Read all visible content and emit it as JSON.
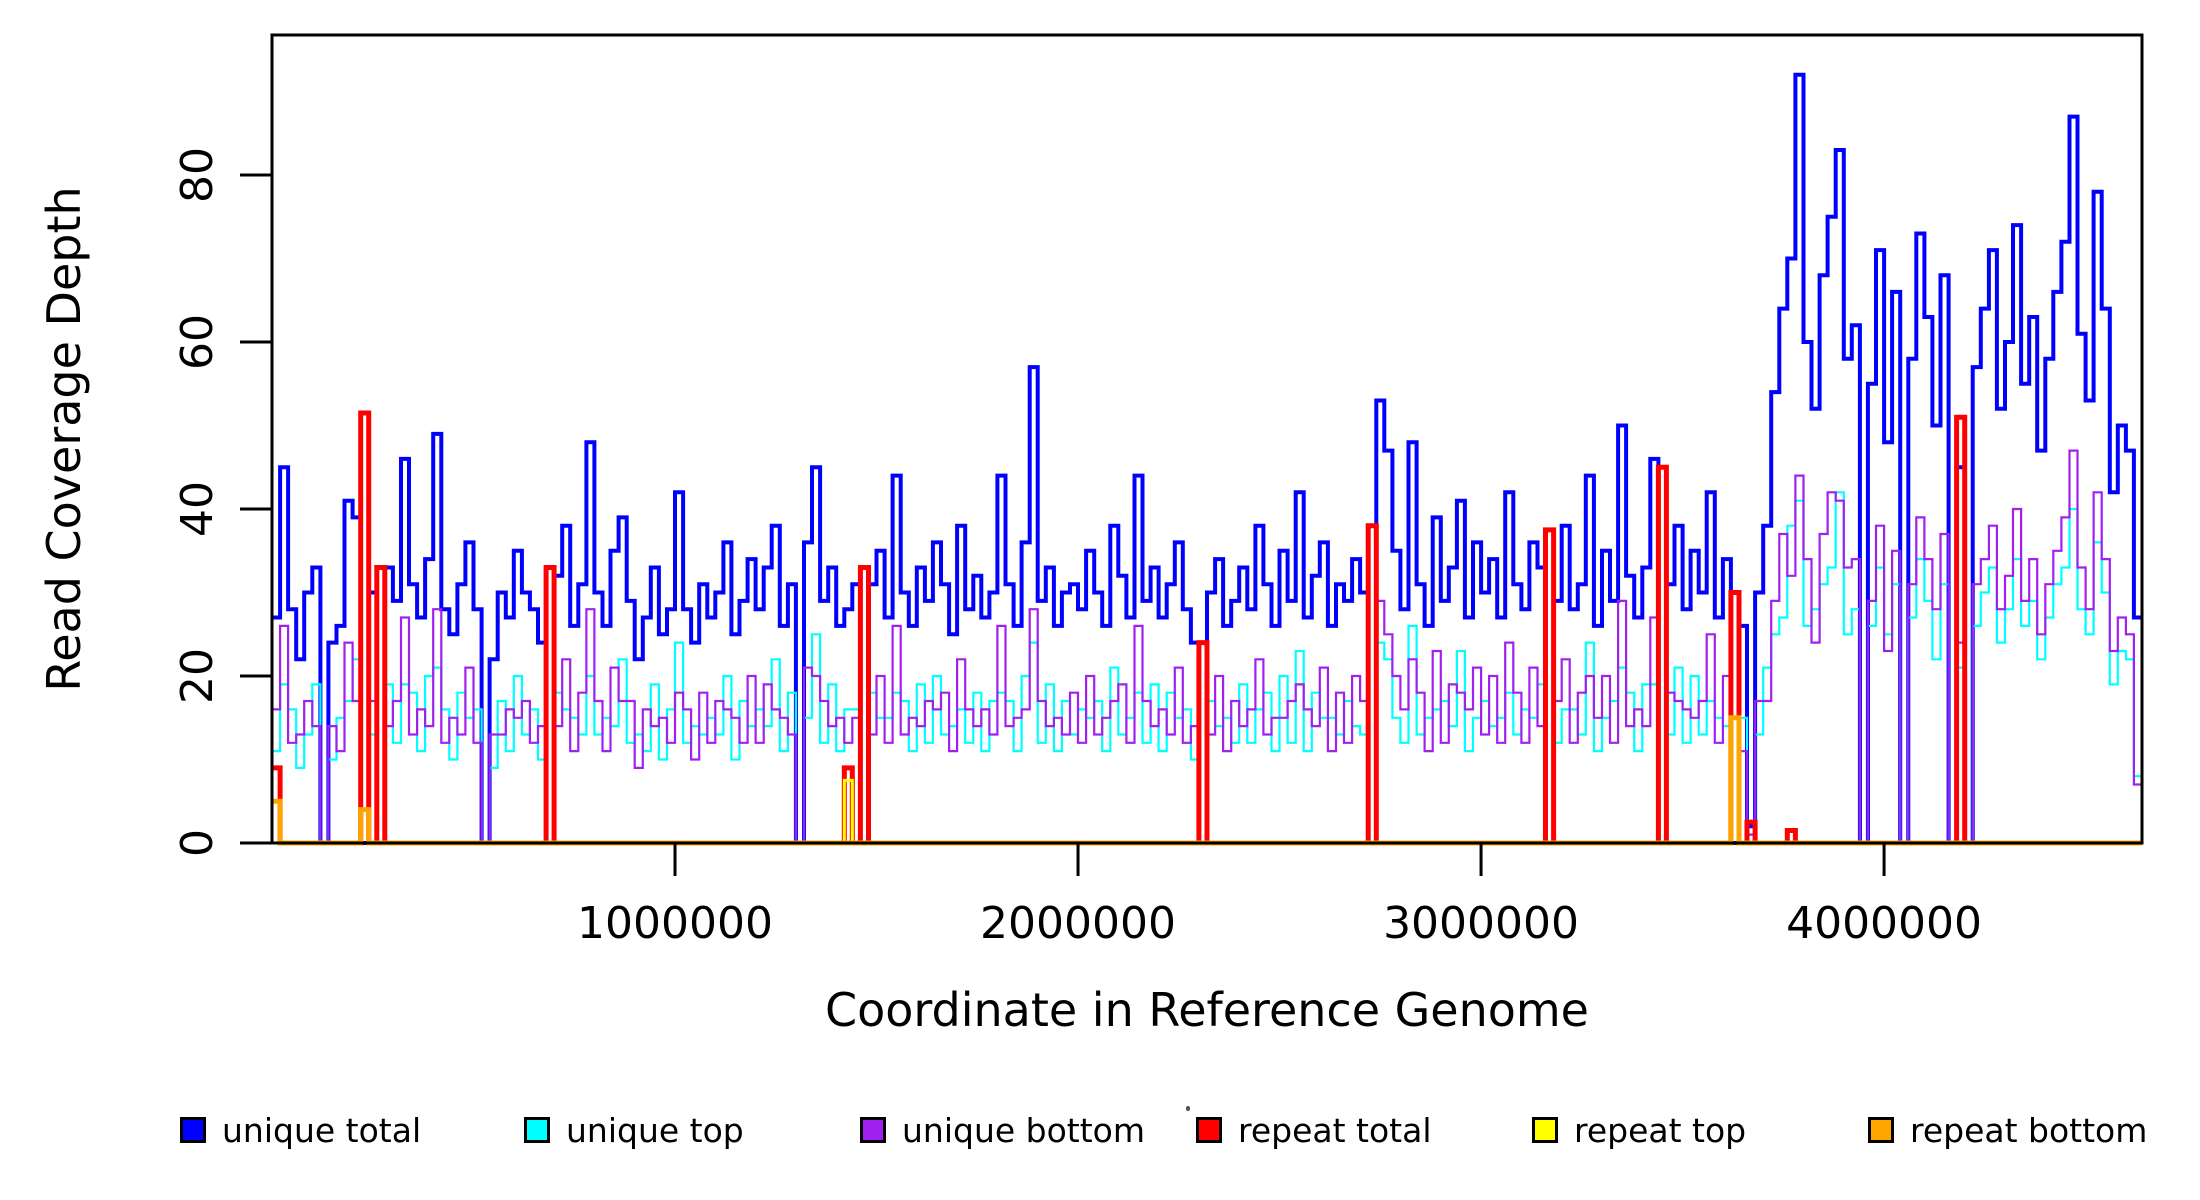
{
  "chart_data": {
    "type": "line",
    "subtype": "step-coverage",
    "title": "",
    "xlabel": "Coordinate in Reference Genome",
    "ylabel": "Read Coverage Depth",
    "x_range_bp": [
      0,
      4640000
    ],
    "ylim": [
      0,
      96
    ],
    "window_bp": 20000,
    "grid": false,
    "legend_position": "bottom-horizontal",
    "x_axis": {
      "ticks": [
        {
          "coord": 1000000,
          "label": "1000000"
        },
        {
          "coord": 2000000,
          "label": "2000000"
        },
        {
          "coord": 3000000,
          "label": "3000000"
        },
        {
          "coord": 4000000,
          "label": "4000000"
        }
      ]
    },
    "y_axis": {
      "ticks": [
        {
          "value": 0,
          "label": "0"
        },
        {
          "value": 20,
          "label": "20"
        },
        {
          "value": 40,
          "label": "40"
        },
        {
          "value": 60,
          "label": "60"
        },
        {
          "value": 80,
          "label": "80"
        }
      ]
    },
    "series": [
      {
        "name": "unique total",
        "color": "#0000ff",
        "line_width": 4,
        "values": [
          27,
          45,
          28,
          22,
          30,
          33,
          0,
          24,
          26,
          41,
          39,
          0,
          30,
          0,
          33,
          29,
          46,
          31,
          27,
          34,
          49,
          28,
          25,
          31,
          36,
          28,
          0,
          22,
          30,
          27,
          35,
          30,
          28,
          24,
          0,
          32,
          38,
          26,
          31,
          48,
          30,
          26,
          35,
          39,
          29,
          22,
          27,
          33,
          25,
          28,
          42,
          28,
          24,
          31,
          27,
          30,
          36,
          25,
          29,
          34,
          28,
          33,
          38,
          26,
          31,
          0,
          36,
          45,
          29,
          33,
          26,
          28,
          31,
          0,
          31,
          35,
          27,
          44,
          30,
          26,
          33,
          29,
          36,
          31,
          25,
          38,
          28,
          32,
          27,
          30,
          44,
          31,
          26,
          36,
          57,
          29,
          33,
          26,
          30,
          31,
          28,
          35,
          30,
          26,
          38,
          32,
          27,
          44,
          29,
          33,
          27,
          31,
          36,
          28,
          24,
          0,
          30,
          34,
          26,
          29,
          33,
          28,
          38,
          31,
          26,
          35,
          29,
          42,
          27,
          32,
          36,
          26,
          31,
          29,
          34,
          30,
          0,
          53,
          47,
          35,
          28,
          48,
          31,
          26,
          39,
          29,
          33,
          41,
          27,
          36,
          30,
          34,
          27,
          42,
          31,
          28,
          36,
          33,
          0,
          29,
          38,
          28,
          31,
          44,
          26,
          35,
          29,
          50,
          32,
          27,
          33,
          46,
          0,
          31,
          38,
          28,
          35,
          30,
          42,
          27,
          34,
          0,
          26,
          2,
          30,
          38,
          54,
          64,
          70,
          92,
          60,
          52,
          68,
          75,
          83,
          58,
          62,
          0,
          55,
          71,
          48,
          66,
          0,
          58,
          73,
          63,
          50,
          68,
          0,
          45,
          0,
          57,
          64,
          71,
          52,
          60,
          74,
          55,
          63,
          47,
          58,
          66,
          72,
          87,
          61,
          53,
          78,
          64,
          42,
          50,
          47,
          27
        ]
      },
      {
        "name": "unique top",
        "color": "#00ffff",
        "line_width": 2.2,
        "values": [
          11,
          19,
          16,
          9,
          13,
          19,
          0,
          10,
          15,
          17,
          22,
          0,
          13,
          0,
          19,
          12,
          19,
          18,
          11,
          20,
          21,
          16,
          10,
          18,
          15,
          16,
          0,
          9,
          17,
          11,
          20,
          13,
          16,
          10,
          0,
          18,
          16,
          15,
          13,
          20,
          13,
          15,
          14,
          22,
          12,
          13,
          11,
          19,
          10,
          16,
          24,
          12,
          14,
          13,
          15,
          13,
          20,
          10,
          17,
          14,
          16,
          14,
          22,
          11,
          18,
          0,
          15,
          25,
          12,
          19,
          11,
          16,
          16,
          0,
          18,
          15,
          15,
          18,
          17,
          11,
          19,
          12,
          20,
          13,
          14,
          16,
          12,
          18,
          11,
          17,
          18,
          17,
          11,
          20,
          24,
          12,
          19,
          11,
          17,
          13,
          16,
          15,
          17,
          11,
          21,
          13,
          15,
          18,
          12,
          19,
          11,
          18,
          15,
          16,
          10,
          0,
          17,
          14,
          15,
          12,
          19,
          12,
          16,
          18,
          11,
          20,
          12,
          23,
          11,
          18,
          15,
          15,
          13,
          17,
          14,
          13,
          0,
          24,
          22,
          15,
          12,
          26,
          13,
          15,
          16,
          17,
          14,
          23,
          11,
          15,
          17,
          14,
          15,
          18,
          13,
          16,
          15,
          19,
          0,
          12,
          16,
          16,
          13,
          24,
          11,
          15,
          17,
          21,
          18,
          11,
          19,
          19,
          0,
          13,
          21,
          12,
          20,
          13,
          17,
          15,
          14,
          0,
          15,
          1,
          13,
          21,
          25,
          27,
          38,
          41,
          26,
          28,
          31,
          33,
          42,
          25,
          28,
          0,
          26,
          33,
          25,
          31,
          0,
          27,
          34,
          29,
          22,
          31,
          0,
          21,
          0,
          26,
          30,
          33,
          24,
          28,
          34,
          26,
          29,
          22,
          27,
          31,
          33,
          40,
          28,
          25,
          36,
          30,
          19,
          23,
          22,
          8
        ]
      },
      {
        "name": "unique bottom",
        "color": "#a020f0",
        "line_width": 2.2,
        "values": [
          16,
          26,
          12,
          13,
          17,
          14,
          0,
          14,
          11,
          24,
          17,
          0,
          17,
          0,
          14,
          17,
          27,
          13,
          16,
          14,
          28,
          12,
          15,
          13,
          21,
          12,
          0,
          13,
          13,
          16,
          15,
          17,
          12,
          14,
          0,
          14,
          22,
          11,
          18,
          28,
          17,
          11,
          21,
          17,
          17,
          9,
          16,
          14,
          15,
          12,
          18,
          16,
          10,
          18,
          12,
          17,
          16,
          15,
          12,
          20,
          12,
          19,
          16,
          15,
          13,
          0,
          21,
          20,
          17,
          14,
          15,
          12,
          15,
          0,
          13,
          20,
          12,
          26,
          13,
          15,
          14,
          17,
          16,
          18,
          11,
          22,
          16,
          14,
          16,
          13,
          26,
          14,
          15,
          16,
          28,
          17,
          14,
          15,
          13,
          18,
          12,
          20,
          13,
          15,
          17,
          19,
          12,
          26,
          17,
          14,
          16,
          13,
          21,
          12,
          14,
          0,
          13,
          20,
          11,
          17,
          14,
          16,
          22,
          13,
          15,
          15,
          17,
          19,
          16,
          14,
          21,
          11,
          18,
          12,
          20,
          17,
          0,
          29,
          25,
          20,
          16,
          22,
          18,
          11,
          23,
          12,
          19,
          18,
          16,
          21,
          13,
          20,
          12,
          24,
          18,
          12,
          21,
          14,
          0,
          17,
          22,
          12,
          18,
          20,
          15,
          20,
          12,
          29,
          14,
          16,
          14,
          27,
          0,
          18,
          17,
          16,
          15,
          17,
          25,
          12,
          20,
          0,
          11,
          1,
          17,
          17,
          29,
          37,
          32,
          44,
          34,
          24,
          37,
          42,
          41,
          33,
          34,
          0,
          29,
          38,
          23,
          35,
          0,
          31,
          39,
          34,
          28,
          37,
          0,
          24,
          0,
          31,
          34,
          38,
          28,
          32,
          40,
          29,
          34,
          25,
          31,
          35,
          39,
          47,
          33,
          28,
          42,
          34,
          23,
          27,
          25,
          7
        ]
      },
      {
        "name": "repeat total",
        "color": "#ff0000",
        "line_width": 5,
        "baseline": 0,
        "spikes": {
          "0": 9,
          "11": 51.5,
          "13": 33,
          "34": 33,
          "71": 9,
          "73": 33,
          "115": 24,
          "136": 38,
          "158": 37.5,
          "172": 45,
          "181": 30,
          "183": 2.5,
          "188": 1.5,
          "209": 51
        }
      },
      {
        "name": "repeat top",
        "color": "#ffff00",
        "line_width": 3,
        "baseline": 0,
        "spikes": {
          "71": 7.5
        }
      },
      {
        "name": "repeat bottom",
        "color": "#ffa500",
        "line_width": 5,
        "baseline": 0,
        "spikes": {
          "0": 5,
          "11": 4,
          "181": 15
        }
      }
    ]
  }
}
